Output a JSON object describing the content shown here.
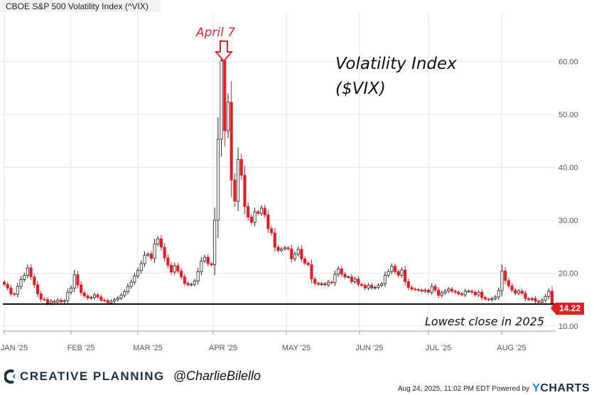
{
  "header": {
    "title": "CBOE S&P 500 Volatility Index (^VIX)"
  },
  "annotations": {
    "main_title_line1": "Volatility Index",
    "main_title_line2": "($VIX)",
    "peak_label": "April 7",
    "low_label": "Lowest close in 2025",
    "last_value": "14.22"
  },
  "footer": {
    "brand": "CREATIVE PLANNING",
    "handle": "@CharlieBilello",
    "timestamp": "Aug 24, 2025, 11:02 PM EDT Powered by",
    "ycharts_y": "Y",
    "ycharts_rest": "CHARTS"
  },
  "colors": {
    "up": "#ffffff",
    "down": "#e31c25",
    "outline": "#222222",
    "badge": "#e31c25",
    "grid": "#e6e6e6"
  },
  "chart_data": {
    "type": "candlestick",
    "ylim": [
      10,
      65
    ],
    "yticks": [
      10,
      20,
      30,
      40,
      50,
      60
    ],
    "ytick_labels": [
      "10.00",
      "20.00",
      "30.00",
      "40.00",
      "50.00",
      "60.00"
    ],
    "months": [
      "JAN '25",
      "FEB '25",
      "MAR '25",
      "APR '25",
      "MAY '25",
      "JUN '25",
      "JUL '25",
      "AUG '25"
    ],
    "grid": true,
    "low_line": 14.22,
    "close": [
      17.9,
      17.2,
      16.1,
      16.0,
      17.5,
      18.8,
      19.6,
      21.0,
      19.3,
      17.8,
      16.1,
      15.1,
      15.0,
      14.3,
      14.7,
      14.5,
      14.9,
      14.6,
      14.8,
      16.4,
      17.2,
      19.7,
      17.8,
      16.3,
      15.7,
      15.3,
      15.4,
      15.9,
      15.5,
      14.9,
      14.8,
      14.4,
      14.7,
      15.0,
      15.3,
      15.8,
      16.5,
      17.5,
      18.3,
      19.5,
      20.5,
      21.8,
      23.4,
      23.6,
      22.8,
      25.5,
      26.5,
      24.9,
      22.9,
      21.5,
      20.2,
      21.4,
      20.4,
      19.3,
      18.1,
      17.8,
      17.9,
      18.5,
      20.3,
      22.3,
      23.0,
      21.8,
      21.6,
      30.0,
      45.3,
      60.1,
      46.9,
      52.3,
      37.6,
      33.6,
      41.5,
      38.5,
      32.6,
      30.6,
      29.6,
      31.6,
      31.3,
      32.3,
      31.0,
      28.4,
      27.6,
      24.9,
      24.3,
      24.6,
      24.8,
      24.6,
      22.7,
      23.6,
      24.5,
      22.7,
      21.9,
      21.6,
      18.9,
      18.1,
      17.9,
      18.0,
      17.8,
      18.3,
      18.2,
      19.8,
      20.8,
      19.8,
      19.3,
      19.3,
      18.4,
      18.9,
      17.9,
      17.7,
      17.2,
      17.7,
      17.2,
      17.3,
      17.7,
      18.0,
      19.6,
      20.3,
      21.3,
      20.3,
      19.6,
      20.6,
      18.4,
      17.3,
      17.0,
      16.9,
      16.8,
      16.6,
      16.8,
      16.4,
      17.5,
      16.8,
      15.8,
      16.3,
      16.6,
      17.0,
      16.6,
      16.4,
      16.1,
      15.9,
      16.6,
      16.6,
      16.4,
      15.9,
      16.4,
      15.4,
      15.1,
      15.0,
      15.2,
      15.5,
      16.7,
      20.4,
      18.6,
      17.6,
      16.8,
      16.2,
      16.6,
      16.2,
      15.2,
      15.0,
      15.2,
      14.7,
      14.5,
      14.9,
      15.6,
      16.6,
      14.22
    ],
    "last_close": 14.22
  }
}
